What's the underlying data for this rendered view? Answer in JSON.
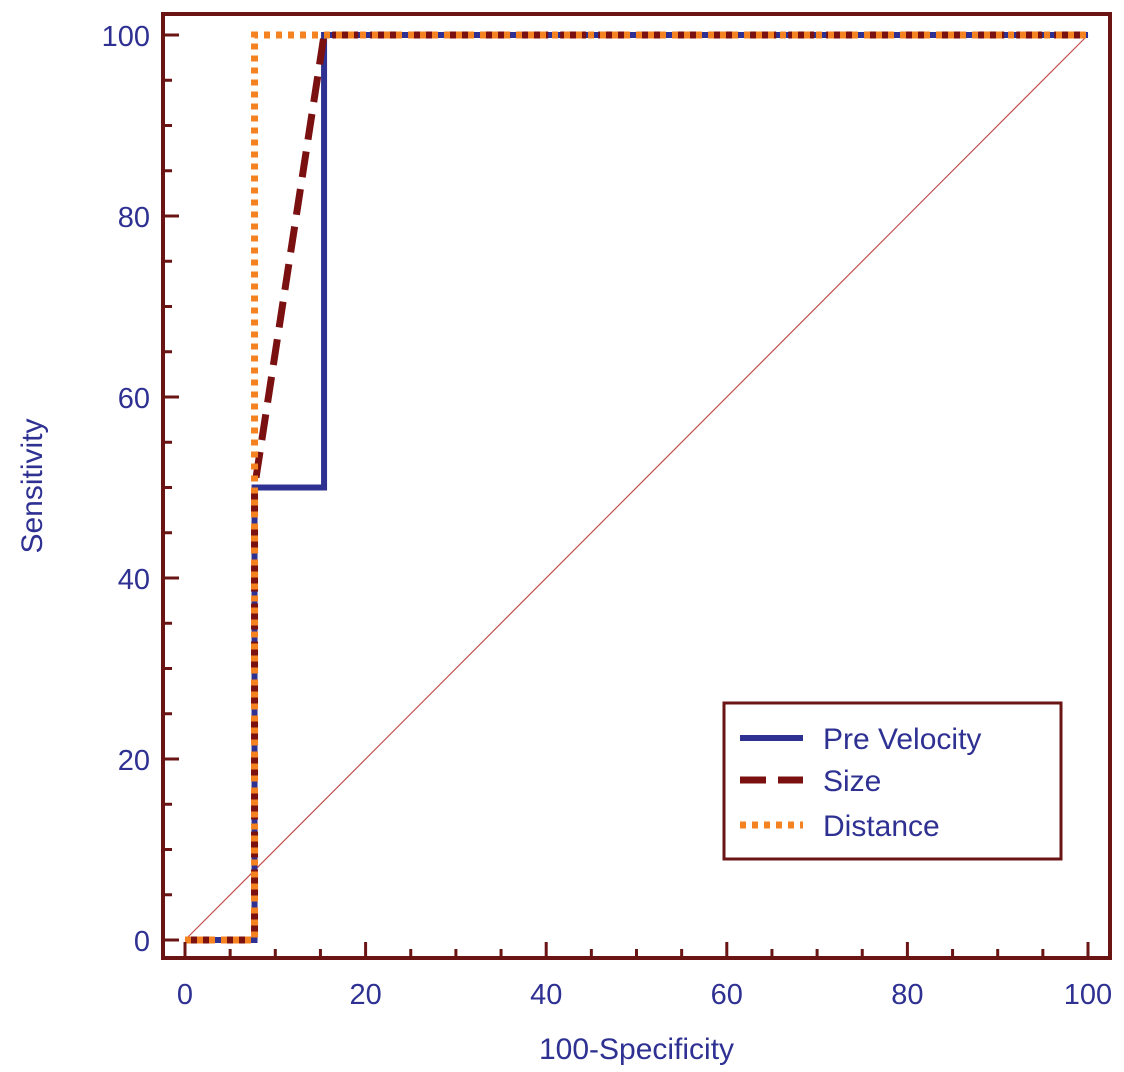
{
  "chart_data": {
    "type": "line",
    "title": "",
    "xlabel": "100-Specificity",
    "ylabel": "Sensitivity",
    "xlim": [
      0,
      100
    ],
    "ylim": [
      0,
      100
    ],
    "xticks": [
      0,
      20,
      40,
      60,
      80,
      100
    ],
    "yticks": [
      0,
      20,
      40,
      60,
      80,
      100
    ],
    "x_minor_step": 5,
    "y_minor_step": 5,
    "grid": false,
    "legend_position": "bottom-right",
    "reference_line": {
      "x": [
        0,
        100
      ],
      "y": [
        0,
        100
      ],
      "color": "#c0504d"
    },
    "series": [
      {
        "name": "Pre Velocity",
        "style": "solid",
        "color": "#2e3192",
        "x": [
          0,
          7.7,
          7.7,
          15.4,
          15.4,
          100
        ],
        "y": [
          0,
          0,
          50,
          50,
          100,
          100
        ]
      },
      {
        "name": "Size",
        "style": "dashed",
        "color": "#7b1010",
        "x": [
          0,
          7.7,
          7.7,
          15.4,
          100
        ],
        "y": [
          0,
          0,
          50,
          100,
          100
        ]
      },
      {
        "name": "Distance",
        "style": "dotted",
        "color": "#f58220",
        "x": [
          0,
          7.7,
          7.7,
          7.7,
          100
        ],
        "y": [
          0,
          0,
          50,
          100,
          100
        ]
      }
    ]
  },
  "colors": {
    "frame": "#6b1414",
    "text": "#2e3192"
  }
}
